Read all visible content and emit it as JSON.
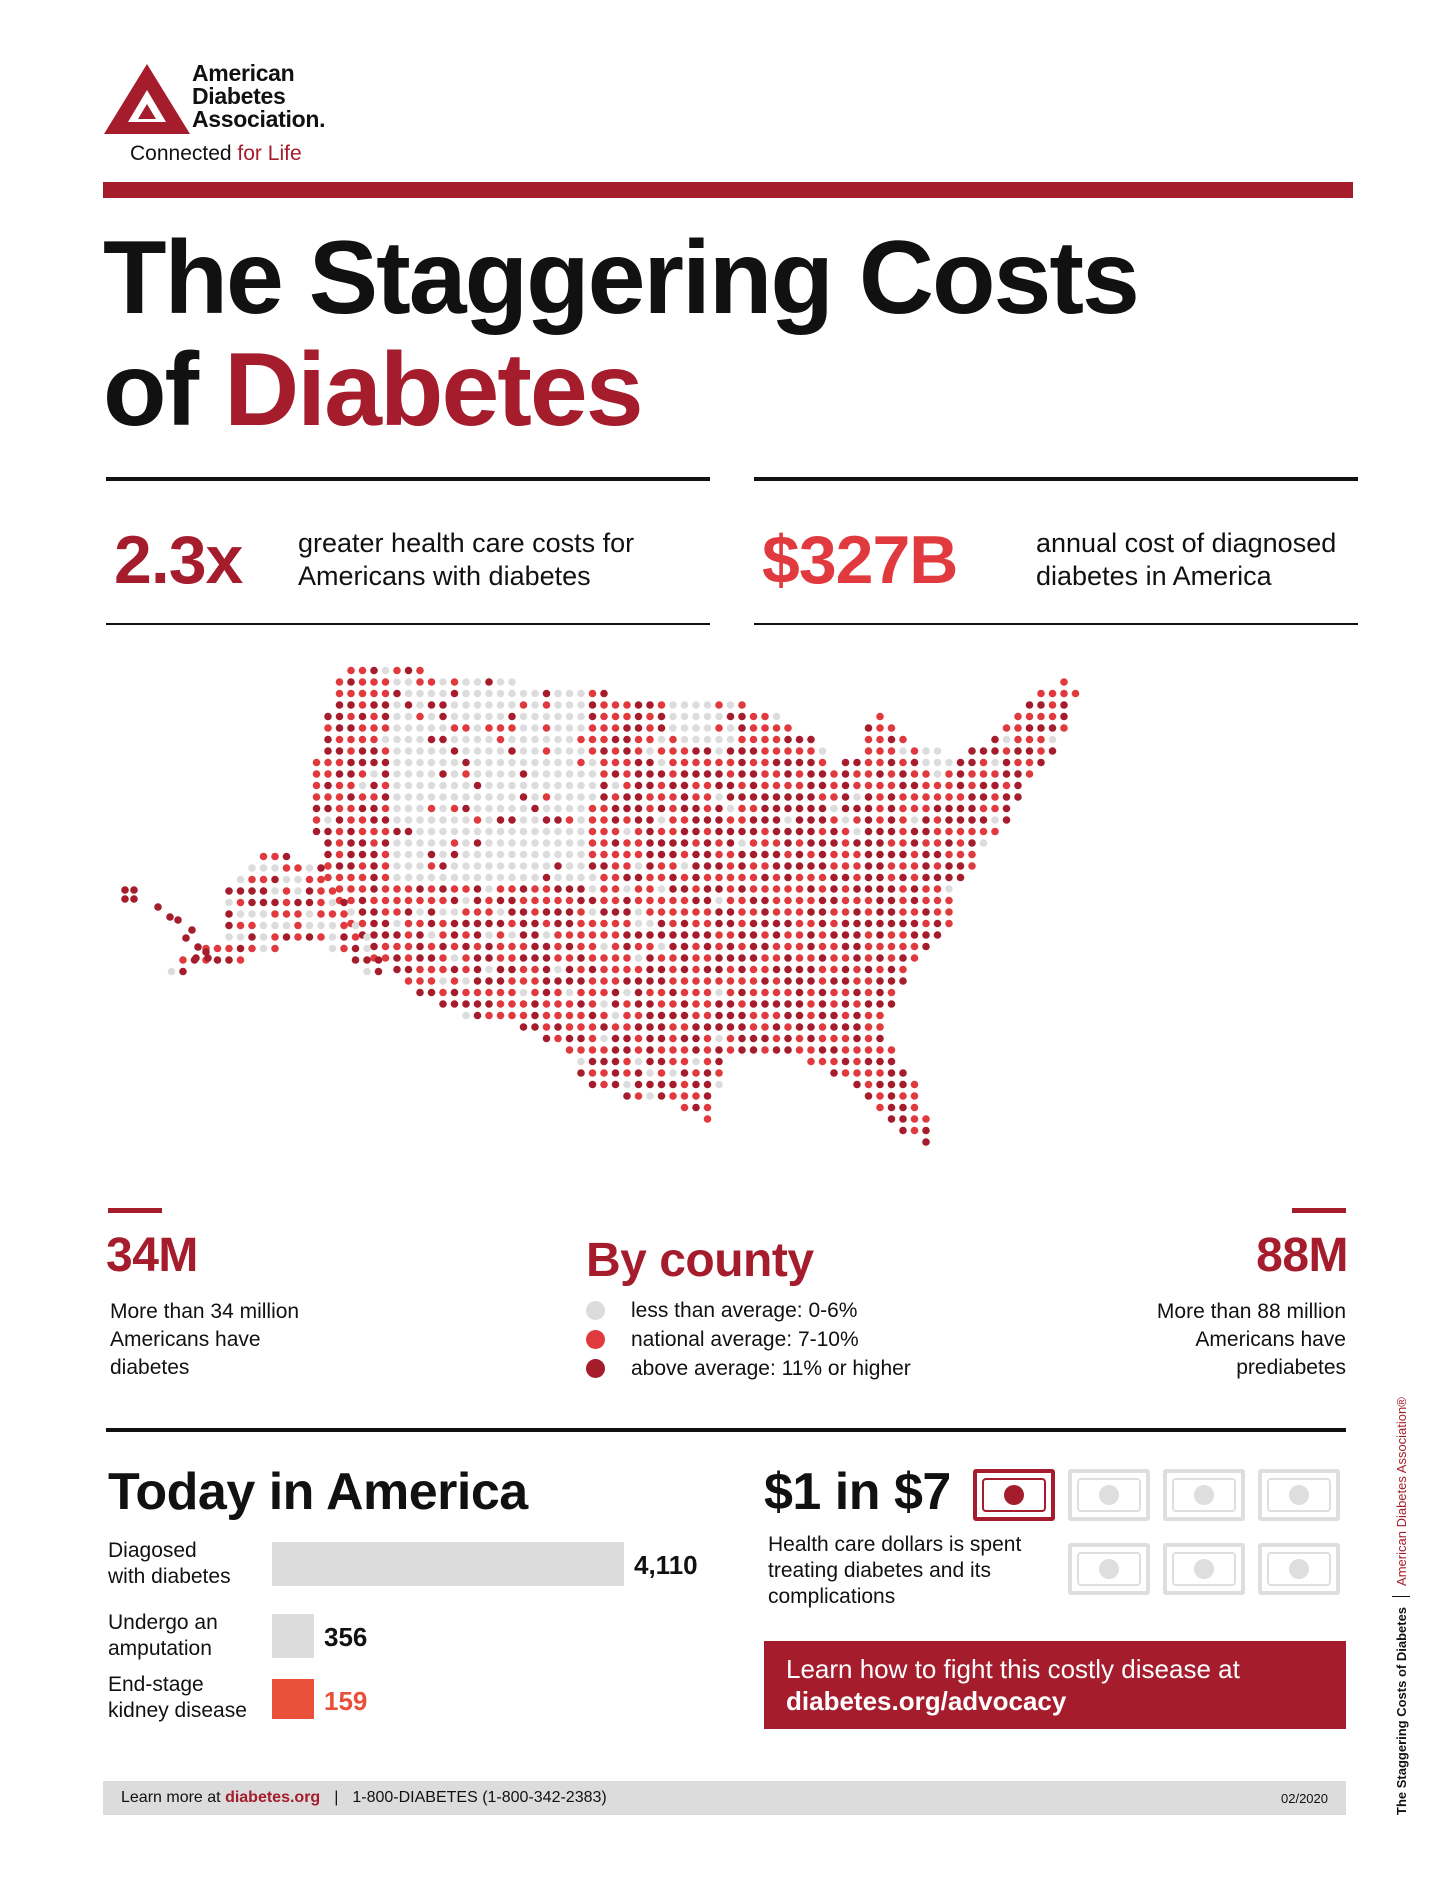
{
  "brand": {
    "logo_icon": "ada-triangle-logo",
    "name_lines": [
      "American",
      "Diabetes",
      "Association."
    ],
    "tagline_plain": "Connected",
    "tagline_red": "for Life"
  },
  "title": {
    "line1": "The Staggering Costs",
    "line2_plain": "of",
    "line2_red": "Diabetes"
  },
  "stats": {
    "multiplier": {
      "value": "2.3x",
      "line1": "greater health care costs for",
      "line2": "Americans with diabetes"
    },
    "annual_cost": {
      "value": "$327B",
      "line1": "annual cost of diagnosed",
      "line2": "diabetes in America"
    }
  },
  "map": {
    "description_icon": "us-dot-map"
  },
  "diagnosed": {
    "value": "34M",
    "lines": [
      "More than 34 million",
      "Americans have",
      "diabetes"
    ]
  },
  "prediabetes": {
    "value": "88M",
    "lines": [
      "More than 88 million",
      "Americans have",
      "prediabetes"
    ]
  },
  "county": {
    "title": "By county",
    "legend": [
      {
        "label": "less than average: 0-6%",
        "color": "#dcdcdc"
      },
      {
        "label": "national average: 7-10%",
        "color": "#e03a3e"
      },
      {
        "label": "above average: 11% or higher",
        "color": "#a51c2c"
      }
    ]
  },
  "today": {
    "title": "Today in America",
    "items": [
      {
        "label1": "Diagosed",
        "label2": "with diabetes",
        "value": "4,110",
        "number": 4110
      },
      {
        "label1": "Undergo an",
        "label2": "amputation",
        "value": "356",
        "number": 356
      },
      {
        "label1": "End-stage",
        "label2": "kidney disease",
        "value": "159",
        "number": 159
      }
    ]
  },
  "dollars": {
    "title": "$1 in $7",
    "desc_lines": [
      "Health care dollars is spent",
      "treating diabetes and its",
      "complications"
    ],
    "bill_icon": "dollar-bill-icon"
  },
  "cta": {
    "line1": "Learn how to fight this costly disease at",
    "line2": "diabetes.org/advocacy"
  },
  "footer": {
    "learn_prefix": "Learn more at",
    "learn_link": "diabetes.org",
    "phone": "1-800-DIABETES (1-800-342-2383)",
    "date": "02/2020"
  },
  "side_text": {
    "part1": "The Staggering Costs of Diabetes",
    "part2": "American Diabetes Association®"
  },
  "colors": {
    "dark_red": "#a51c2c",
    "bright_red": "#e03a3e",
    "orange_red": "#e8503a",
    "light_gray": "#dcdcdc"
  }
}
